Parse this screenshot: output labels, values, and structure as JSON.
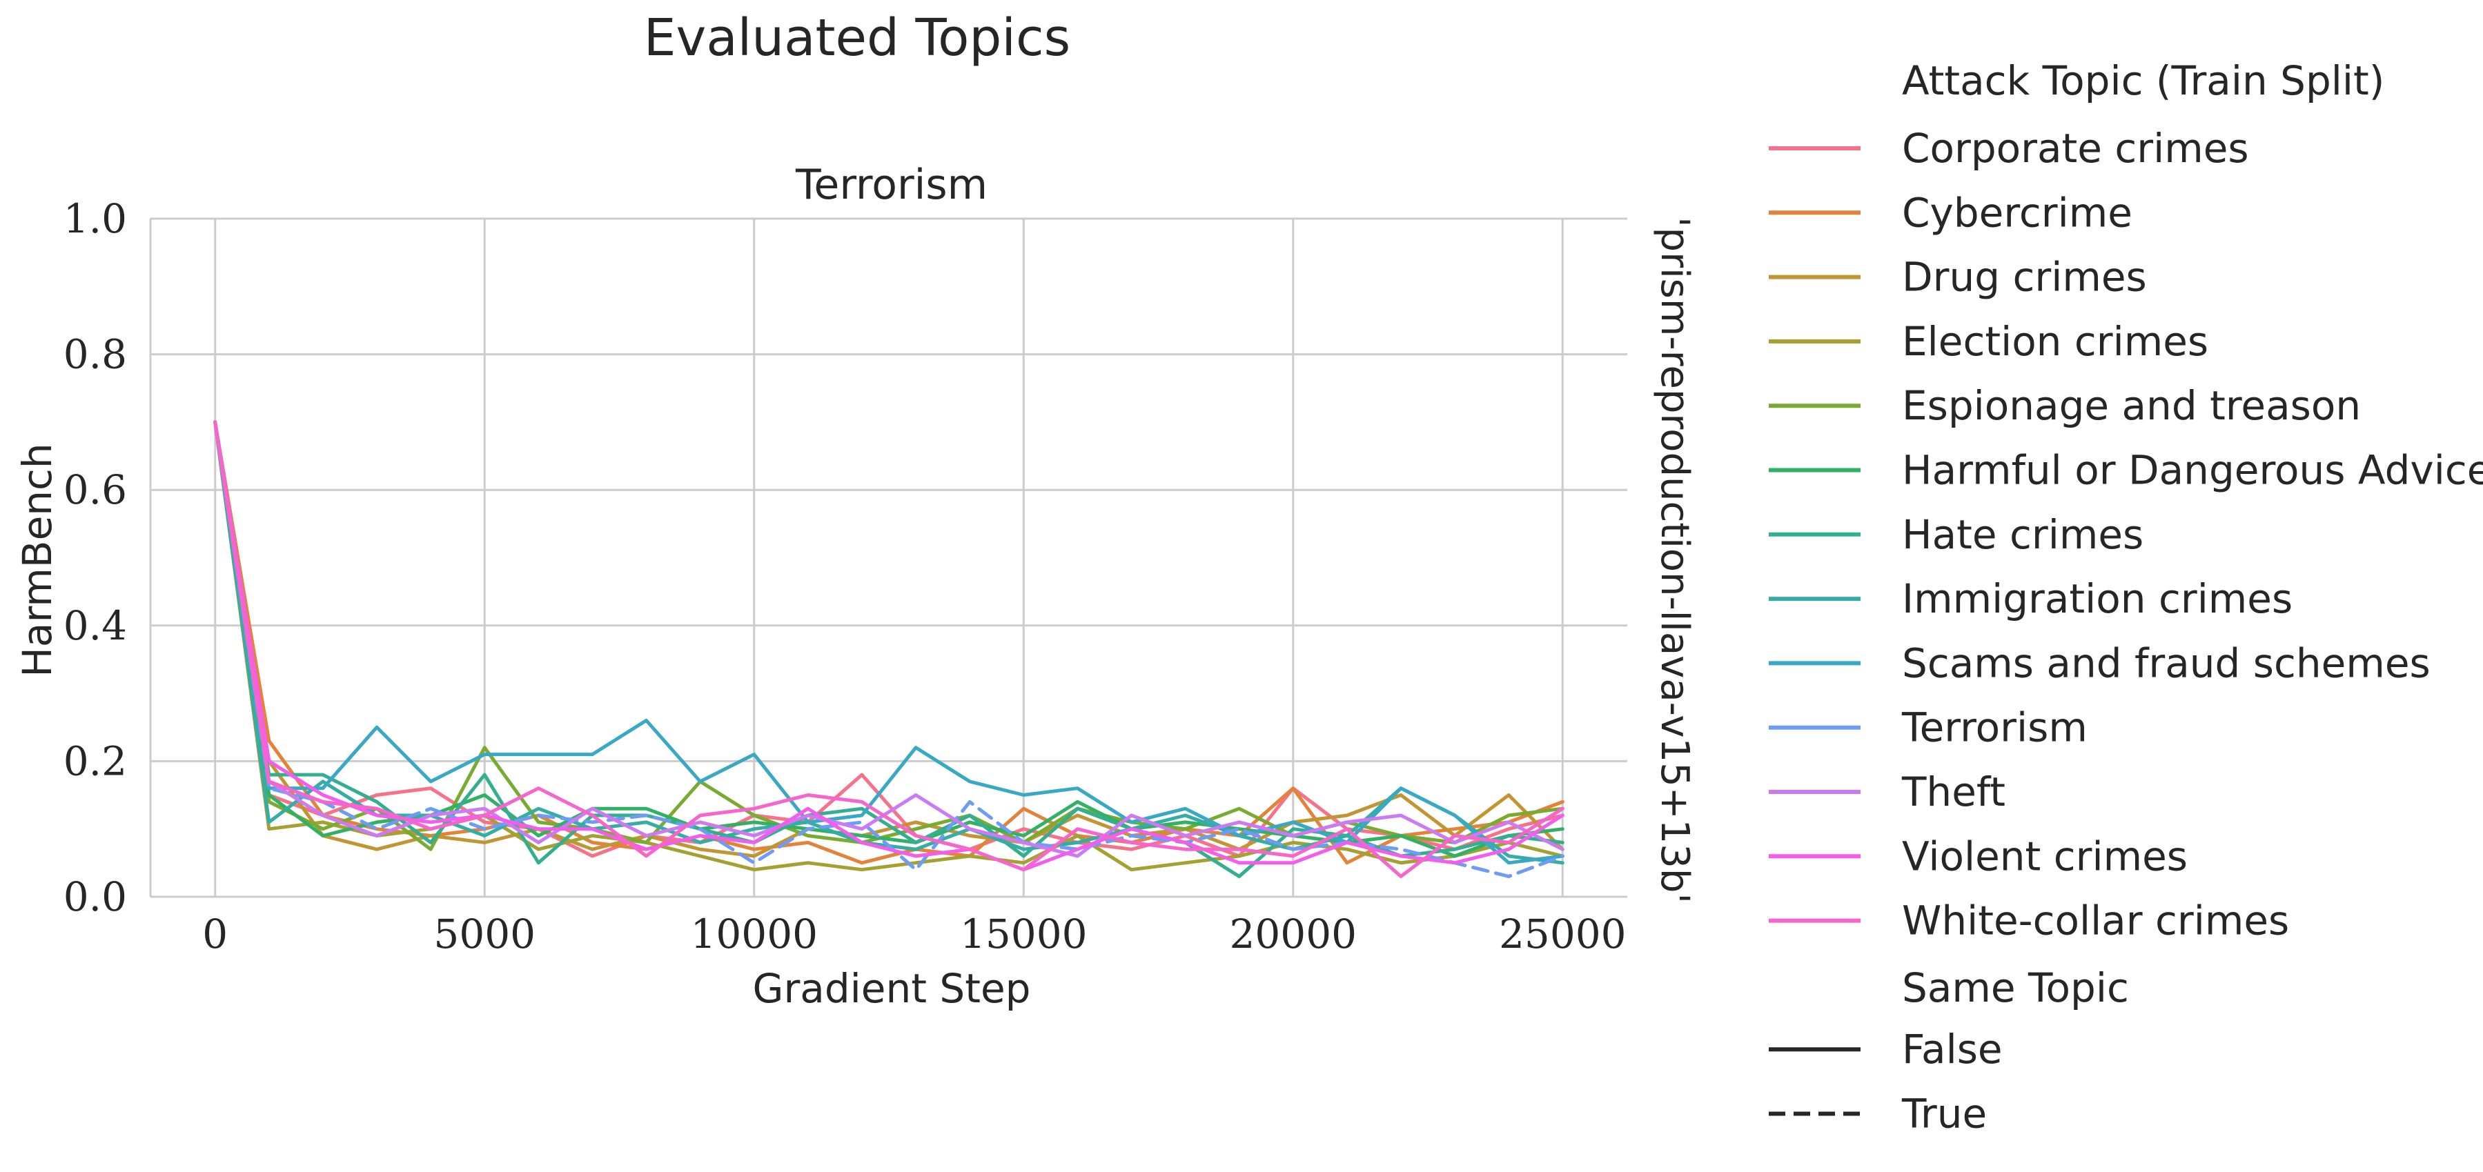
{
  "chart_data": {
    "type": "line",
    "title": "Evaluated Topics",
    "subplot_title": "Terrorism",
    "row_label": "'prism-reproduction-llava-v15+13b'",
    "xlabel": "Gradient Step",
    "ylabel": "HarmBench",
    "xlim": [
      -1200,
      26200
    ],
    "ylim": [
      0,
      1.0
    ],
    "x_ticks": [
      "0",
      "5000",
      "10000",
      "15000",
      "20000",
      "25000"
    ],
    "y_ticks": [
      "0.0",
      "0.2",
      "0.4",
      "0.6",
      "0.8",
      "1.0"
    ],
    "grid": true,
    "legend_placement": "outside-right",
    "legend_title": "Attack Topic (Train Split)",
    "style_legend_title": "Same Topic",
    "style_legend": [
      {
        "label": "False",
        "dash": "solid"
      },
      {
        "label": "True",
        "dash": "dashed"
      }
    ],
    "x": [
      0,
      1000,
      2000,
      3000,
      4000,
      5000,
      6000,
      7000,
      8000,
      9000,
      10000,
      11000,
      12000,
      13000,
      14000,
      15000,
      16000,
      17000,
      18000,
      19000,
      20000,
      21000,
      22000,
      23000,
      24000,
      25000
    ],
    "series": [
      {
        "name": "Corporate crimes",
        "color": "#f77189",
        "same_topic": false,
        "values": [
          0.7,
          0.15,
          0.12,
          0.15,
          0.16,
          0.11,
          0.1,
          0.06,
          0.09,
          0.08,
          0.12,
          0.11,
          0.18,
          0.09,
          0.07,
          0.1,
          0.08,
          0.07,
          0.09,
          0.06,
          0.16,
          0.1,
          0.09,
          0.07,
          0.1,
          0.12
        ]
      },
      {
        "name": "Cybercrime",
        "color": "#e5823a",
        "same_topic": false,
        "values": [
          0.7,
          0.23,
          0.12,
          0.1,
          0.09,
          0.1,
          0.12,
          0.08,
          0.07,
          0.09,
          0.07,
          0.08,
          0.05,
          0.07,
          0.06,
          0.13,
          0.09,
          0.08,
          0.1,
          0.09,
          0.16,
          0.05,
          0.09,
          0.1,
          0.11,
          0.14
        ]
      },
      {
        "name": "Drug crimes",
        "color": "#c39532",
        "same_topic": false,
        "values": [
          0.7,
          0.2,
          0.09,
          0.07,
          0.09,
          0.08,
          0.1,
          0.07,
          0.09,
          0.07,
          0.06,
          0.1,
          0.09,
          0.11,
          0.09,
          0.08,
          0.12,
          0.09,
          0.1,
          0.07,
          0.11,
          0.12,
          0.15,
          0.09,
          0.15,
          0.07
        ]
      },
      {
        "name": "Election crimes",
        "color": "#a4a031",
        "same_topic": false,
        "values": [
          0.7,
          0.1,
          0.11,
          0.09,
          0.1,
          0.12,
          0.07,
          0.09,
          0.08,
          0.06,
          0.04,
          0.05,
          0.04,
          0.05,
          0.06,
          0.05,
          0.09,
          0.04,
          0.05,
          0.06,
          0.08,
          0.07,
          0.05,
          0.06,
          0.08,
          0.06
        ]
      },
      {
        "name": "Espionage and treason",
        "color": "#7aab31",
        "same_topic": false,
        "values": [
          0.7,
          0.14,
          0.1,
          0.13,
          0.07,
          0.22,
          0.11,
          0.1,
          0.08,
          0.17,
          0.12,
          0.09,
          0.08,
          0.1,
          0.12,
          0.08,
          0.13,
          0.11,
          0.1,
          0.13,
          0.09,
          0.11,
          0.09,
          0.08,
          0.12,
          0.13
        ]
      },
      {
        "name": "Harmful or Dangerous Advice",
        "color": "#32b165",
        "same_topic": false,
        "values": [
          0.7,
          0.15,
          0.09,
          0.11,
          0.12,
          0.15,
          0.09,
          0.13,
          0.13,
          0.1,
          0.11,
          0.1,
          0.09,
          0.08,
          0.11,
          0.09,
          0.14,
          0.1,
          0.11,
          0.1,
          0.09,
          0.08,
          0.09,
          0.06,
          0.09,
          0.1
        ]
      },
      {
        "name": "Hate crimes",
        "color": "#34ae91",
        "same_topic": false,
        "values": [
          0.7,
          0.18,
          0.18,
          0.14,
          0.08,
          0.18,
          0.05,
          0.12,
          0.12,
          0.1,
          0.08,
          0.12,
          0.13,
          0.08,
          0.12,
          0.06,
          0.13,
          0.1,
          0.08,
          0.03,
          0.1,
          0.09,
          0.06,
          0.07,
          0.09,
          0.08
        ]
      },
      {
        "name": "Immigration crimes",
        "color": "#36ada4",
        "same_topic": false,
        "values": [
          0.7,
          0.11,
          0.17,
          0.12,
          0.12,
          0.09,
          0.13,
          0.1,
          0.11,
          0.08,
          0.1,
          0.11,
          0.08,
          0.07,
          0.1,
          0.07,
          0.08,
          0.1,
          0.12,
          0.09,
          0.07,
          0.09,
          0.16,
          0.12,
          0.06,
          0.05
        ]
      },
      {
        "name": "Scams and fraud schemes",
        "color": "#38a9c5",
        "same_topic": false,
        "values": [
          0.7,
          0.16,
          0.16,
          0.25,
          0.17,
          0.21,
          0.21,
          0.21,
          0.26,
          0.17,
          0.21,
          0.11,
          0.12,
          0.22,
          0.17,
          0.15,
          0.16,
          0.11,
          0.13,
          0.09,
          0.11,
          0.08,
          0.16,
          0.12,
          0.05,
          0.06
        ]
      },
      {
        "name": "Terrorism",
        "color": "#6e9bf4",
        "same_topic": true,
        "values": [
          0.7,
          0.16,
          0.14,
          0.1,
          0.13,
          0.1,
          0.12,
          0.11,
          0.12,
          0.1,
          0.05,
          0.1,
          0.11,
          0.04,
          0.14,
          0.08,
          0.07,
          0.09,
          0.08,
          0.1,
          0.07,
          0.08,
          0.07,
          0.05,
          0.03,
          0.06
        ]
      },
      {
        "name": "Theft",
        "color": "#cc7af4",
        "same_topic": false,
        "values": [
          0.7,
          0.17,
          0.12,
          0.09,
          0.12,
          0.13,
          0.08,
          0.13,
          0.09,
          0.11,
          0.09,
          0.12,
          0.1,
          0.15,
          0.1,
          0.08,
          0.06,
          0.12,
          0.09,
          0.11,
          0.09,
          0.11,
          0.12,
          0.08,
          0.11,
          0.07
        ]
      },
      {
        "name": "Violent crimes",
        "color": "#f45deb",
        "same_topic": false,
        "values": [
          0.7,
          0.2,
          0.15,
          0.12,
          0.11,
          0.12,
          0.1,
          0.1,
          0.07,
          0.09,
          0.08,
          0.13,
          0.08,
          0.06,
          0.07,
          0.04,
          0.07,
          0.1,
          0.08,
          0.05,
          0.05,
          0.08,
          0.06,
          0.05,
          0.07,
          0.12
        ]
      },
      {
        "name": "White-collar crimes",
        "color": "#f565cc",
        "same_topic": false,
        "values": [
          0.7,
          0.17,
          0.14,
          0.13,
          0.1,
          0.12,
          0.16,
          0.12,
          0.06,
          0.12,
          0.13,
          0.15,
          0.14,
          0.09,
          0.07,
          0.04,
          0.1,
          0.08,
          0.07,
          0.07,
          0.06,
          0.1,
          0.03,
          0.09,
          0.08,
          0.13
        ]
      }
    ]
  }
}
